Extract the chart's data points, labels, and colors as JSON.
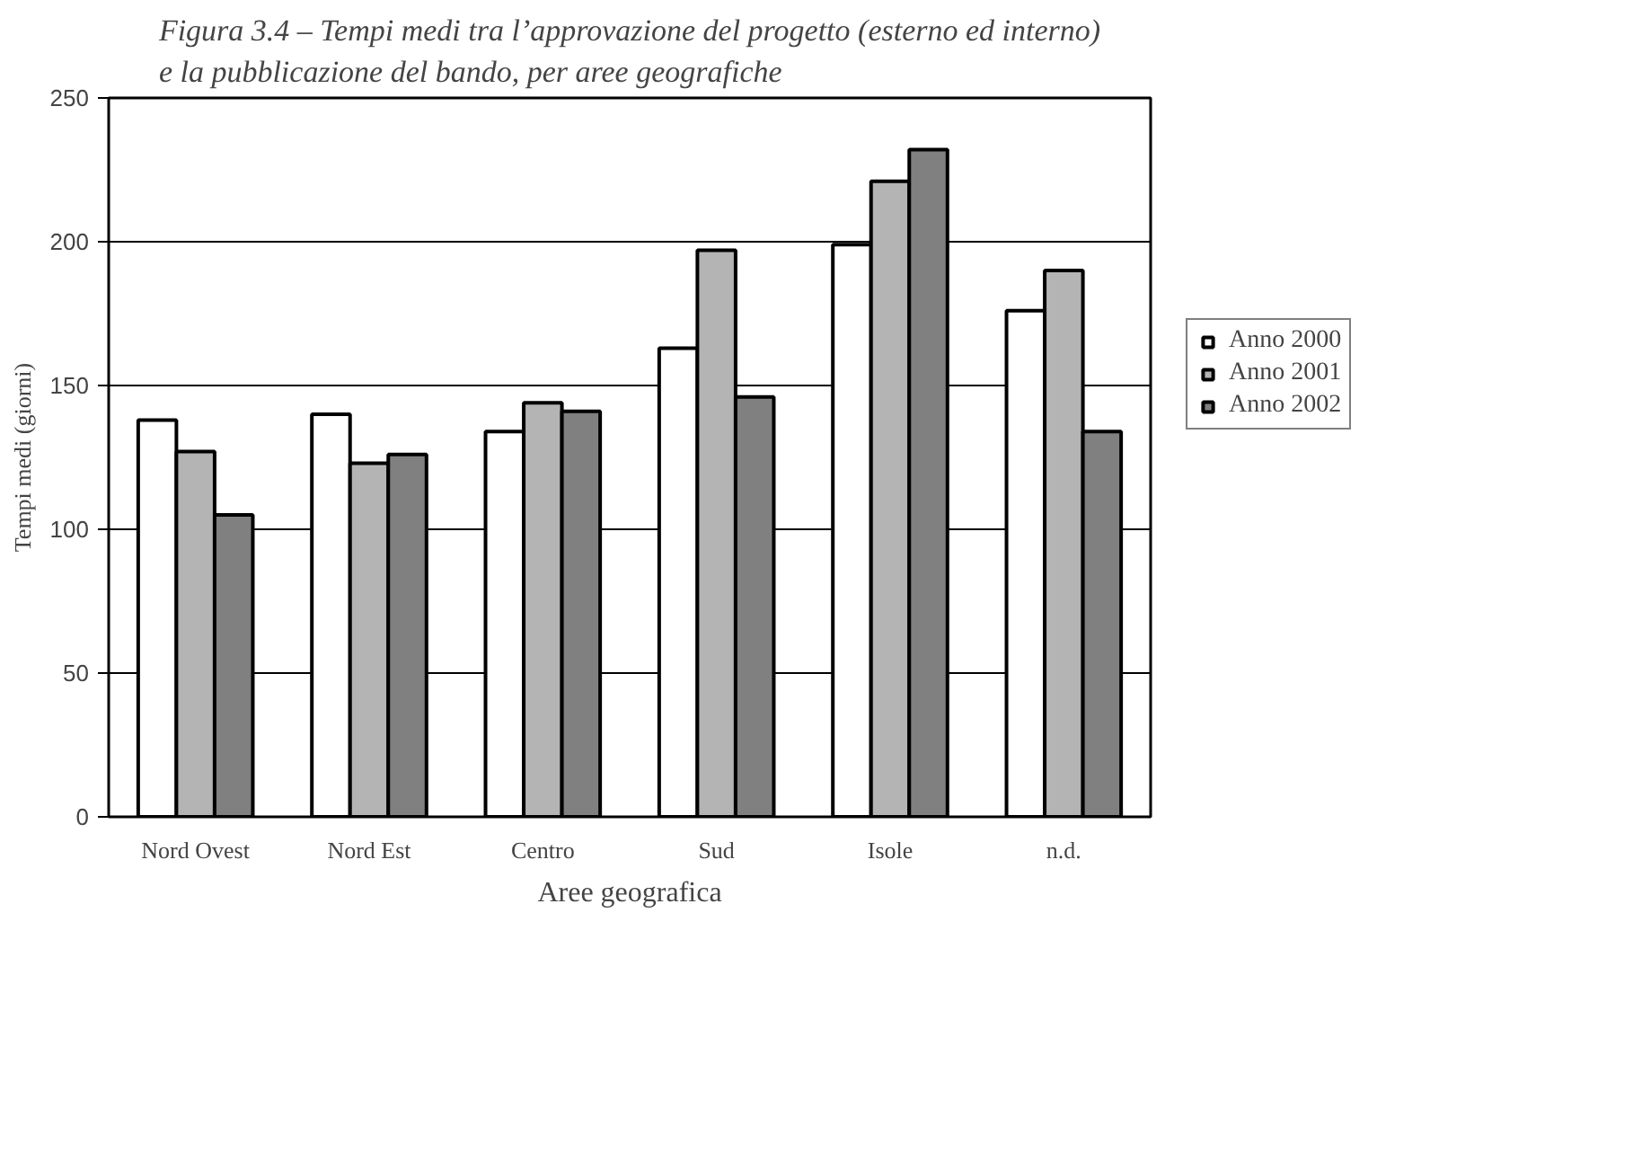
{
  "chart_data": {
    "type": "bar",
    "title": "Figura 3.4 – Tempi medi tra l’approvazione del progetto (esterno ed interno)\ne la pubblicazione del bando, per aree geografiche",
    "xlabel": "Aree geografica",
    "ylabel": "Tempi medi (giorni)",
    "categories": [
      "Nord Ovest",
      "Nord Est",
      "Centro",
      "Sud",
      "Isole",
      "n.d."
    ],
    "series": [
      {
        "name": "Anno 2000",
        "color": "#ffffff",
        "values": [
          138,
          140,
          134,
          163,
          199,
          176
        ]
      },
      {
        "name": "Anno 2001",
        "color": "#b4b4b4",
        "values": [
          127,
          123,
          144,
          197,
          221,
          190
        ]
      },
      {
        "name": "Anno 2002",
        "color": "#808080",
        "values": [
          105,
          126,
          141,
          146,
          232,
          134
        ]
      }
    ],
    "ylim": [
      0,
      250
    ],
    "yticks": [
      0,
      50,
      100,
      150,
      200,
      250
    ],
    "grid": "y",
    "legend": "right"
  }
}
